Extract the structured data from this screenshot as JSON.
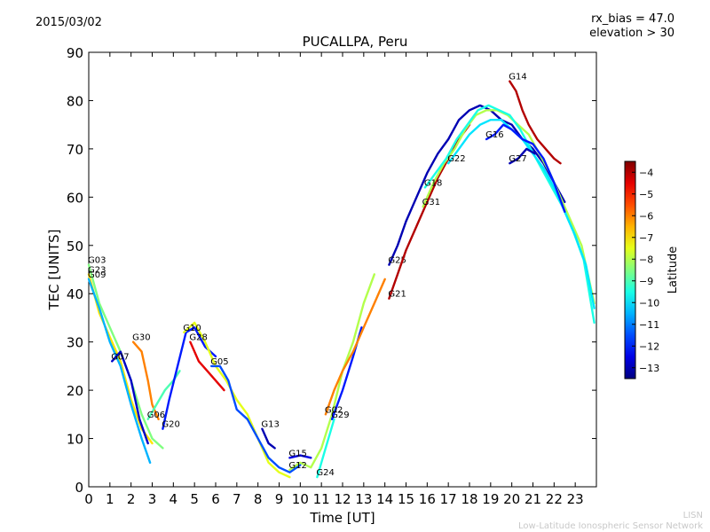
{
  "header": {
    "date": "2015/03/02",
    "bias_line1": "rx_bias = 47.0",
    "bias_line2": "elevation > 30",
    "title": "PUCALLPA, Peru"
  },
  "footer": {
    "line1": "LISN",
    "line2": "Low-Latitude Ionospheric Sensor Network"
  },
  "chart_data": {
    "type": "scatter",
    "title": "PUCALLPA, Peru",
    "xlabel": "Time [UT]",
    "ylabel": "TEC [UNITS]",
    "xlim": [
      0,
      24
    ],
    "ylim": [
      0,
      90
    ],
    "xticks": [
      0,
      1,
      2,
      3,
      4,
      5,
      6,
      7,
      8,
      9,
      10,
      11,
      12,
      13,
      14,
      15,
      16,
      17,
      18,
      19,
      20,
      21,
      22,
      23
    ],
    "yticks": [
      0,
      10,
      20,
      30,
      40,
      50,
      60,
      70,
      80,
      90
    ],
    "grid": false,
    "colorbar": {
      "label": "Latitude",
      "range": [
        -13.5,
        -3.5
      ],
      "ticks": [
        -4,
        -5,
        -6,
        -7,
        -8,
        -9,
        -10,
        -11,
        -12,
        -13
      ],
      "colormap": "jet"
    },
    "series": [
      {
        "name": "G03",
        "lat": -8.5,
        "points": [
          [
            0,
            46
          ],
          [
            0.5,
            38
          ],
          [
            1,
            33
          ],
          [
            1.5,
            28
          ],
          [
            2,
            22
          ],
          [
            2.5,
            15
          ],
          [
            3,
            10
          ],
          [
            3.5,
            8
          ]
        ]
      },
      {
        "name": "G23",
        "lat": -7,
        "points": [
          [
            0,
            44
          ],
          [
            0.5,
            36
          ],
          [
            1,
            31
          ],
          [
            1.5,
            26
          ],
          [
            2,
            18
          ],
          [
            2.5,
            12
          ],
          [
            3,
            9
          ]
        ]
      },
      {
        "name": "G09",
        "lat": -10.5,
        "points": [
          [
            0,
            43
          ],
          [
            0.5,
            37
          ],
          [
            1,
            30
          ],
          [
            1.5,
            25
          ],
          [
            2,
            17
          ],
          [
            2.5,
            10
          ],
          [
            2.9,
            5
          ]
        ]
      },
      {
        "name": "G07",
        "lat": -12.8,
        "points": [
          [
            1.1,
            26
          ],
          [
            1.5,
            28
          ],
          [
            2,
            22
          ],
          [
            2.4,
            14
          ],
          [
            2.8,
            9
          ]
        ]
      },
      {
        "name": "G30",
        "lat": -6,
        "points": [
          [
            2.1,
            30
          ],
          [
            2.5,
            28
          ],
          [
            2.8,
            22
          ],
          [
            3,
            17
          ],
          [
            3.3,
            14
          ]
        ]
      },
      {
        "name": "G06",
        "lat": -9,
        "points": [
          [
            2.8,
            14
          ],
          [
            3.2,
            17
          ],
          [
            3.6,
            20
          ],
          [
            4,
            22
          ],
          [
            4.3,
            24
          ]
        ]
      },
      {
        "name": "G20",
        "lat": -12,
        "points": [
          [
            3.5,
            12
          ],
          [
            3.8,
            18
          ],
          [
            4.2,
            25
          ],
          [
            4.6,
            32
          ],
          [
            5,
            33
          ],
          [
            5.5,
            29
          ],
          [
            6,
            27
          ]
        ]
      },
      {
        "name": "G10",
        "lat": -7.5,
        "points": [
          [
            4.5,
            32
          ],
          [
            5,
            34
          ],
          [
            5.5,
            30
          ],
          [
            6,
            25
          ],
          [
            6.5,
            22
          ],
          [
            7,
            18
          ],
          [
            7.5,
            15
          ],
          [
            8,
            10
          ],
          [
            8.5,
            5
          ],
          [
            9,
            3
          ],
          [
            9.5,
            2
          ]
        ]
      },
      {
        "name": "G28",
        "lat": -4.5,
        "points": [
          [
            4.8,
            30
          ],
          [
            5.2,
            26
          ],
          [
            5.6,
            24
          ],
          [
            6,
            22
          ],
          [
            6.4,
            20
          ]
        ]
      },
      {
        "name": "G05",
        "lat": -11.5,
        "points": [
          [
            5.8,
            25
          ],
          [
            6.2,
            25
          ],
          [
            6.6,
            22
          ],
          [
            7,
            16
          ],
          [
            7.5,
            14
          ],
          [
            8,
            10
          ],
          [
            8.5,
            6
          ],
          [
            9,
            4
          ],
          [
            9.5,
            3
          ],
          [
            10,
            4.5
          ]
        ]
      },
      {
        "name": "G13",
        "lat": -13,
        "points": [
          [
            8.2,
            12
          ],
          [
            8.5,
            9
          ],
          [
            8.8,
            8
          ]
        ]
      },
      {
        "name": "G15",
        "lat": -12.5,
        "points": [
          [
            9.5,
            6
          ],
          [
            10,
            6.5
          ],
          [
            10.5,
            6
          ]
        ]
      },
      {
        "name": "G12",
        "lat": -8,
        "points": [
          [
            9.5,
            3.5
          ],
          [
            10,
            5
          ],
          [
            10.5,
            4
          ],
          [
            11,
            8
          ],
          [
            11.5,
            15
          ],
          [
            12,
            24
          ],
          [
            12.5,
            30
          ],
          [
            13,
            38
          ],
          [
            13.5,
            44
          ]
        ]
      },
      {
        "name": "G24",
        "lat": -9.5,
        "points": [
          [
            10.8,
            2
          ],
          [
            11.2,
            8
          ],
          [
            11.6,
            14
          ]
        ]
      },
      {
        "name": "G29",
        "lat": -12,
        "points": [
          [
            11.5,
            14
          ],
          [
            12,
            20
          ],
          [
            12.5,
            27
          ],
          [
            12.9,
            33
          ]
        ]
      },
      {
        "name": "G02",
        "lat": -6,
        "points": [
          [
            11.2,
            15
          ],
          [
            11.6,
            20
          ],
          [
            12,
            24
          ],
          [
            12.5,
            28
          ],
          [
            13,
            33
          ],
          [
            13.5,
            38
          ],
          [
            14,
            43
          ]
        ]
      },
      {
        "name": "G25",
        "lat": -13,
        "points": [
          [
            14.2,
            46
          ],
          [
            14.6,
            50
          ],
          [
            15,
            55
          ],
          [
            15.5,
            60
          ],
          [
            16,
            65
          ],
          [
            16.5,
            69
          ],
          [
            17,
            72
          ],
          [
            17.5,
            76
          ],
          [
            18,
            78
          ],
          [
            18.5,
            79
          ],
          [
            19,
            78
          ],
          [
            19.5,
            76
          ],
          [
            20,
            75
          ],
          [
            20.5,
            72
          ],
          [
            21,
            70
          ],
          [
            21.5,
            67
          ],
          [
            22,
            63
          ],
          [
            22.5,
            59
          ]
        ]
      },
      {
        "name": "G21",
        "lat": -4,
        "points": [
          [
            14.2,
            39
          ],
          [
            14.6,
            44
          ],
          [
            15,
            49
          ],
          [
            15.5,
            54
          ],
          [
            16,
            59
          ],
          [
            16.5,
            64
          ],
          [
            17,
            68
          ],
          [
            17.5,
            72
          ],
          [
            18,
            75
          ]
        ]
      },
      {
        "name": "G31",
        "lat": -8,
        "points": [
          [
            15.8,
            58
          ],
          [
            16.3,
            63
          ],
          [
            16.8,
            67
          ],
          [
            17.3,
            70
          ],
          [
            17.8,
            74
          ],
          [
            18.3,
            77
          ],
          [
            18.8,
            78
          ],
          [
            19.3,
            78
          ],
          [
            19.8,
            77
          ],
          [
            20.3,
            75
          ],
          [
            20.8,
            73
          ],
          [
            21.3,
            69
          ],
          [
            21.8,
            65
          ],
          [
            22.3,
            60
          ],
          [
            22.8,
            55
          ],
          [
            23.3,
            50
          ],
          [
            23.9,
            38
          ]
        ]
      },
      {
        "name": "G18",
        "lat": -9.5,
        "points": [
          [
            15.9,
            62
          ],
          [
            16.4,
            65
          ],
          [
            16.9,
            68
          ],
          [
            17.4,
            72
          ],
          [
            17.9,
            75
          ],
          [
            18.4,
            78
          ],
          [
            18.9,
            79
          ],
          [
            19.4,
            78
          ],
          [
            19.9,
            77
          ],
          [
            20.4,
            74
          ],
          [
            20.9,
            70
          ],
          [
            21.4,
            66
          ],
          [
            21.9,
            62
          ],
          [
            22.4,
            58
          ],
          [
            22.9,
            53
          ],
          [
            23.4,
            47
          ],
          [
            23.9,
            34
          ]
        ]
      },
      {
        "name": "G22",
        "lat": -10,
        "points": [
          [
            17,
            67
          ],
          [
            17.5,
            70
          ],
          [
            18,
            73
          ],
          [
            18.5,
            75
          ],
          [
            19,
            76
          ],
          [
            19.5,
            76
          ],
          [
            20,
            74
          ],
          [
            20.5,
            72
          ],
          [
            21,
            69
          ],
          [
            21.5,
            66
          ],
          [
            22,
            62
          ],
          [
            22.5,
            57
          ],
          [
            23,
            52
          ],
          [
            23.5,
            46
          ],
          [
            23.9,
            37
          ]
        ]
      },
      {
        "name": "G16",
        "lat": -12,
        "points": [
          [
            18.8,
            72
          ],
          [
            19.2,
            73
          ],
          [
            19.6,
            75
          ],
          [
            20,
            74
          ],
          [
            20.5,
            72
          ],
          [
            21,
            71
          ],
          [
            21.5,
            68
          ],
          [
            22,
            63
          ],
          [
            22.5,
            57
          ]
        ]
      },
      {
        "name": "G27",
        "lat": -13,
        "points": [
          [
            19.9,
            67
          ],
          [
            20.3,
            68
          ],
          [
            20.7,
            70
          ],
          [
            21.1,
            69
          ]
        ]
      },
      {
        "name": "G14",
        "lat": -4,
        "points": [
          [
            19.9,
            84
          ],
          [
            20.2,
            82
          ],
          [
            20.5,
            78
          ],
          [
            20.8,
            75
          ],
          [
            21.2,
            72
          ],
          [
            21.6,
            70
          ],
          [
            22,
            68
          ],
          [
            22.3,
            67
          ]
        ]
      }
    ]
  }
}
